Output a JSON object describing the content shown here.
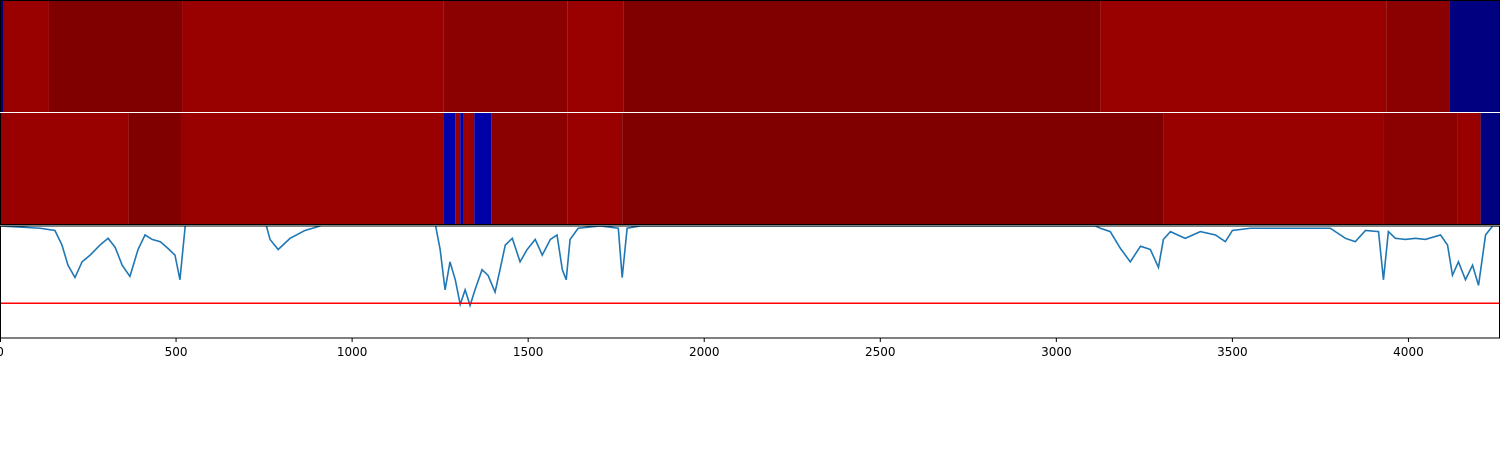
{
  "chart_data": [
    {
      "type": "strip",
      "colormap": "jet",
      "clim": [
        0,
        1
      ],
      "xlim": [
        0,
        4260
      ],
      "bins": [
        0,
        11,
        139,
        517,
        1259,
        1611,
        1770,
        3125,
        3937,
        4116,
        4260
      ],
      "values": [
        0,
        0.975,
        1.0,
        0.975,
        0.989,
        0.975,
        1.0,
        0.975,
        0.989,
        0
      ]
    },
    {
      "type": "strip",
      "colormap": "jet",
      "clim": [
        0,
        1
      ],
      "xlim": [
        0,
        4260
      ],
      "bins": [
        0,
        366,
        514,
        1259,
        1293,
        1307,
        1315,
        1347,
        1395,
        1611,
        1767,
        3304,
        3929,
        4139,
        4205,
        4260
      ],
      "values": [
        0.975,
        1.0,
        0.975,
        0.04,
        0.975,
        0.04,
        0.975,
        0.04,
        0.989,
        0.975,
        1.0,
        0.975,
        0.989,
        0.975,
        0
      ]
    },
    {
      "type": "line",
      "color": "#1f77b4",
      "xlim": [
        0,
        4260
      ],
      "ylim": [
        0,
        1
      ],
      "xticks": [
        0,
        500,
        1000,
        1500,
        2000,
        2500,
        3000,
        3500,
        4000
      ],
      "hline": {
        "value": 0.31,
        "color": "#ff0000"
      },
      "x": [
        0,
        114,
        156,
        176,
        193,
        213,
        233,
        256,
        284,
        307,
        327,
        347,
        369,
        392,
        412,
        432,
        455,
        477,
        497,
        511,
        526,
        540,
        753,
        767,
        790,
        824,
        866,
        909,
        938,
        1236,
        1250,
        1264,
        1278,
        1293,
        1307,
        1321,
        1335,
        1349,
        1369,
        1386,
        1406,
        1420,
        1435,
        1455,
        1477,
        1497,
        1520,
        1540,
        1563,
        1582,
        1597,
        1608,
        1619,
        1642,
        1705,
        1756,
        1767,
        1781,
        1818,
        2557,
        3111,
        3125,
        3153,
        3182,
        3210,
        3239,
        3267,
        3290,
        3304,
        3324,
        3366,
        3409,
        3452,
        3480,
        3500,
        3551,
        3778,
        3821,
        3849,
        3878,
        3915,
        3929,
        3943,
        3963,
        3991,
        4020,
        4048,
        4091,
        4111,
        4125,
        4142,
        4162,
        4182,
        4199,
        4219,
        4239,
        4260
      ],
      "values": [
        1.0,
        0.98,
        0.96,
        0.83,
        0.65,
        0.54,
        0.68,
        0.74,
        0.83,
        0.89,
        0.81,
        0.65,
        0.55,
        0.79,
        0.92,
        0.88,
        0.86,
        0.8,
        0.74,
        0.52,
        1.0,
        1.04,
        1.04,
        0.88,
        0.79,
        0.89,
        0.96,
        1.0,
        1.02,
        1.02,
        0.79,
        0.43,
        0.68,
        0.52,
        0.3,
        0.43,
        0.29,
        0.43,
        0.61,
        0.56,
        0.41,
        0.61,
        0.83,
        0.89,
        0.68,
        0.79,
        0.88,
        0.74,
        0.88,
        0.92,
        0.61,
        0.52,
        0.88,
        0.98,
        1.0,
        0.98,
        0.54,
        0.98,
        1.0,
        1.0,
        1.0,
        0.98,
        0.95,
        0.8,
        0.68,
        0.82,
        0.79,
        0.63,
        0.88,
        0.95,
        0.89,
        0.95,
        0.92,
        0.86,
        0.96,
        0.98,
        0.98,
        0.89,
        0.86,
        0.96,
        0.95,
        0.52,
        0.95,
        0.89,
        0.88,
        0.89,
        0.88,
        0.92,
        0.83,
        0.56,
        0.68,
        0.52,
        0.65,
        0.47,
        0.92,
        1.0,
        1.0
      ]
    }
  ]
}
